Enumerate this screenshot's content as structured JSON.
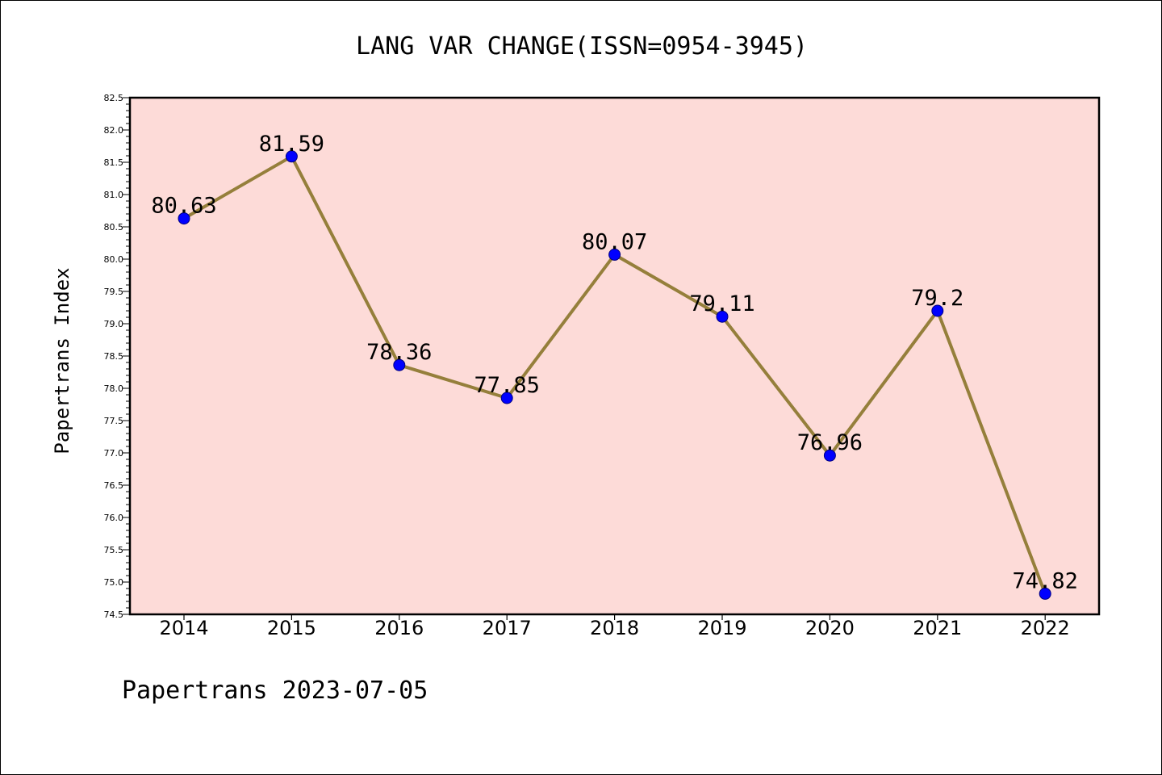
{
  "chart_data": {
    "type": "line",
    "title": "LANG VAR CHANGE(ISSN=0954-3945)",
    "xlabel": "",
    "ylabel": "Papertrans Index",
    "footer": "Papertrans 2023-07-05",
    "categories": [
      "2014",
      "2015",
      "2016",
      "2017",
      "2018",
      "2019",
      "2020",
      "2021",
      "2022"
    ],
    "series": [
      {
        "values": [
          80.63,
          81.59,
          78.36,
          77.85,
          80.07,
          79.11,
          76.96,
          79.2,
          74.82
        ],
        "labels": [
          "80.63",
          "81.59",
          "78.36",
          "77.85",
          "80.07",
          "79.11",
          "76.96",
          "79.2",
          "74.82"
        ]
      }
    ],
    "ylim": [
      74.5,
      82.5
    ],
    "yticks": [
      "74.5",
      "75.0",
      "75.5",
      "76.0",
      "76.5",
      "77.0",
      "77.5",
      "78.0",
      "78.5",
      "79.0",
      "79.5",
      "80.0",
      "80.5",
      "81.0",
      "81.5",
      "82.0",
      "82.5"
    ],
    "grid": false,
    "legend": "none",
    "colors": {
      "plot_background": "#fddbd8",
      "line": "#957f3b",
      "marker": "#0000ff",
      "marker_edge": "#000080"
    }
  }
}
